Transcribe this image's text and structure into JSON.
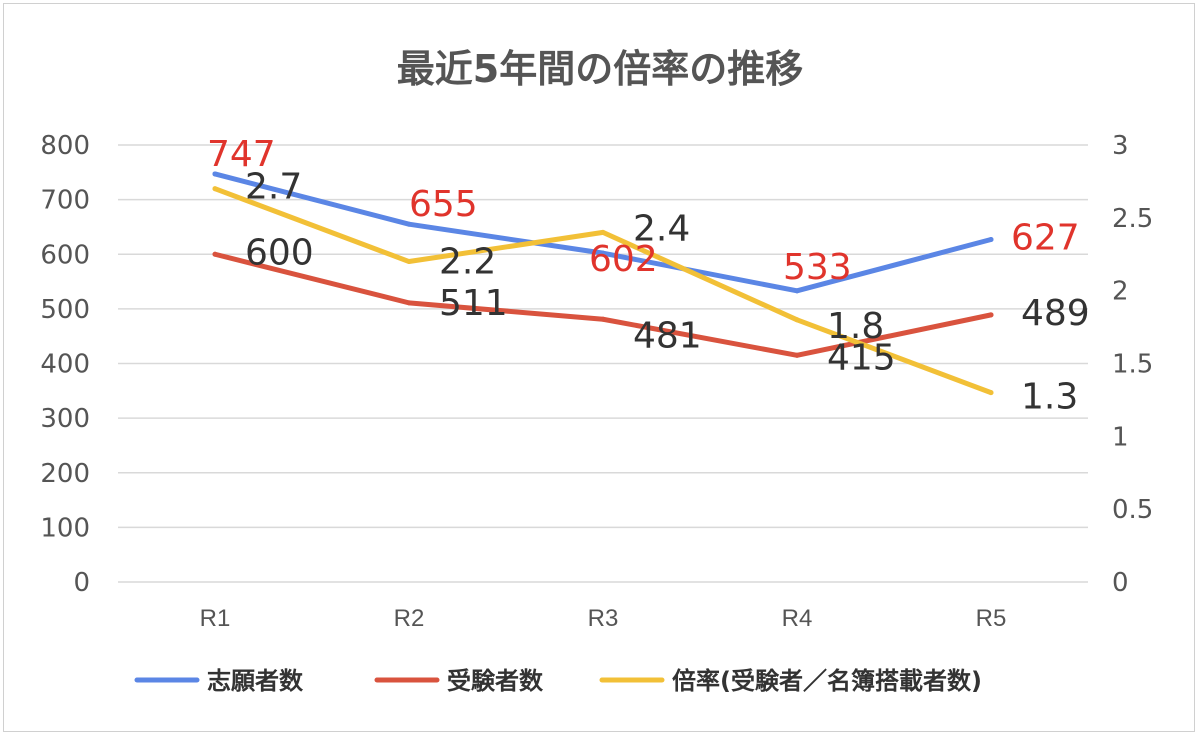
{
  "chart_data": {
    "type": "line",
    "title": "最近5年間の倍率の推移",
    "categories": [
      "R1",
      "R2",
      "R3",
      "R4",
      "R5"
    ],
    "y_left": {
      "ylim": [
        0,
        800
      ],
      "ticks": [
        "0",
        "100",
        "200",
        "300",
        "400",
        "500",
        "600",
        "700",
        "800"
      ]
    },
    "y_right": {
      "ylim": [
        0,
        3
      ],
      "ticks": [
        "0",
        "0.5",
        "1",
        "1.5",
        "2",
        "2.5",
        "3"
      ]
    },
    "grid": true,
    "legend_position": "bottom",
    "series": [
      {
        "name": "志願者数",
        "axis": "left",
        "color": "#5B86E5",
        "values": [
          747,
          655,
          602,
          533,
          627
        ],
        "labels": [
          "747",
          "655",
          "602",
          "533",
          "627"
        ],
        "label_color": "#E0342C"
      },
      {
        "name": "受験者数",
        "axis": "left",
        "color": "#D9533E",
        "values": [
          600,
          511,
          481,
          415,
          489
        ],
        "labels": [
          "600",
          "511",
          "481",
          "415",
          "489"
        ],
        "label_color": "#333333"
      },
      {
        "name": "倍率(受験者／名簿搭載者数)",
        "axis": "right",
        "color": "#F2C037",
        "values": [
          2.7,
          2.2,
          2.4,
          1.8,
          1.3
        ],
        "labels": [
          "2.7",
          "2.2",
          "2.4",
          "1.8",
          "1.3"
        ],
        "label_color": "#333333"
      }
    ]
  }
}
